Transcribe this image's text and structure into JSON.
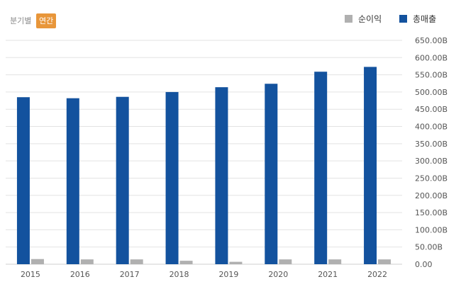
{
  "controls": {
    "quarterly_label": "분기별",
    "annual_label": "연간",
    "active": "annual"
  },
  "colors": {
    "revenue": "#13529e",
    "net_income": "#b0b0b0",
    "active_toggle": "#e8963a",
    "grid": "#e3e3e3"
  },
  "chart_data": {
    "type": "bar",
    "categories": [
      "2015",
      "2016",
      "2017",
      "2018",
      "2019",
      "2020",
      "2021",
      "2022"
    ],
    "series": [
      {
        "name": "순이익",
        "values": [
          15,
          14,
          14,
          10,
          7,
          14,
          14,
          14
        ]
      },
      {
        "name": "총매출",
        "values": [
          485,
          482,
          486,
          500,
          514,
          524,
          559,
          573
        ]
      }
    ],
    "y_ticks": [
      "0.00",
      "50.00B",
      "100.00B",
      "150.00B",
      "200.00B",
      "250.00B",
      "300.00B",
      "350.00B",
      "400.00B",
      "450.00B",
      "500.00B",
      "550.00B",
      "600.00B",
      "650.00B"
    ],
    "ylim": [
      0,
      650
    ],
    "y_axis_position": "right",
    "legend_position": "top-right",
    "grid": true
  }
}
